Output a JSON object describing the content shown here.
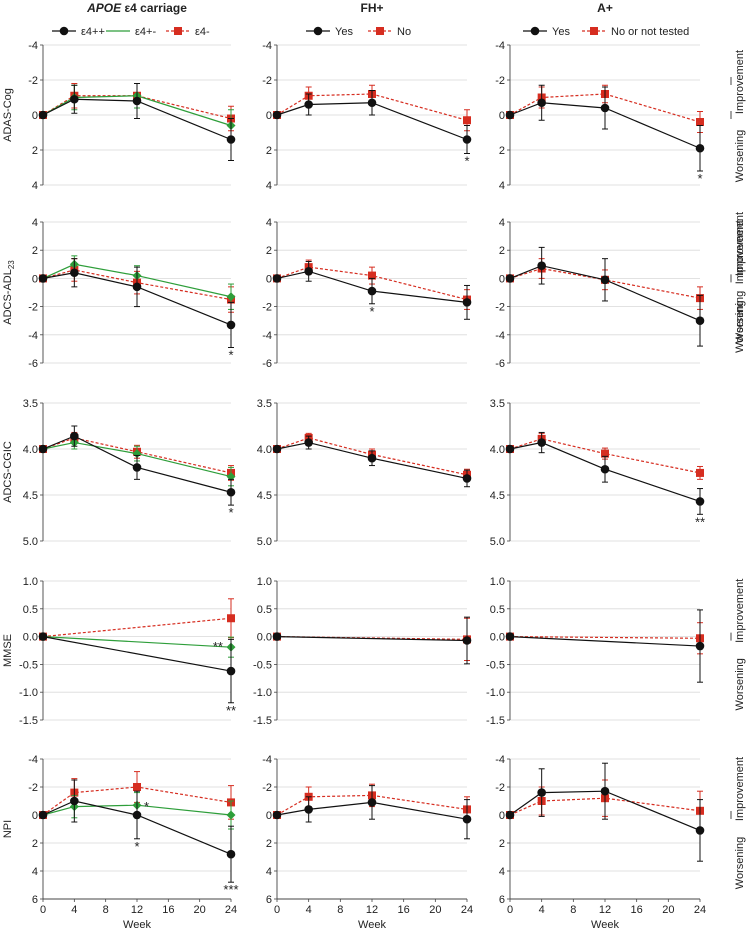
{
  "colors": {
    "black": "#111111",
    "green": "#2e9e3a",
    "red": "#d62d20",
    "grid": "#d9d9d9",
    "axis": "#444444"
  },
  "columns": [
    {
      "title_italic": "APOE",
      "title_rest": " ε4 carriage",
      "legend": [
        "ε4++",
        "ε4+-",
        "ε4-"
      ]
    },
    {
      "title_italic": "",
      "title_rest": "FH+",
      "legend": [
        "Yes",
        "No"
      ]
    },
    {
      "title_italic": "",
      "title_rest": "A+",
      "legend": [
        "Yes",
        "No or not tested"
      ]
    }
  ],
  "side_labels": {
    "improvement": "Improvement",
    "worsening": "Worsening"
  },
  "chart_data": {
    "type": "line",
    "x": [
      0,
      4,
      12,
      24
    ],
    "x_ticks": [
      "0",
      "4",
      "8",
      "12",
      "16",
      "20",
      "24"
    ],
    "xlabel": "Week",
    "rows": [
      {
        "ylabel": "ADAS-Cog",
        "ylabel_sub": "",
        "ylim": [
          -4,
          4
        ],
        "inverted": true,
        "tick_step": 2,
        "tick_decimals": 0,
        "tick_labels": [
          "-4",
          "-2",
          "0",
          "2",
          "4"
        ],
        "panels": [
          {
            "series": [
              {
                "name": "ε4++",
                "color": "black",
                "values": [
                  0,
                  -0.9,
                  -0.8,
                  1.4
                ],
                "err": [
                  0,
                  0.8,
                  1.0,
                  1.2
                ],
                "annotations": []
              },
              {
                "name": "ε4+-",
                "color": "green",
                "values": [
                  0,
                  -1.0,
                  -1.1,
                  0.6
                ],
                "err": [
                  0,
                  0.7,
                  0.7,
                  0.9
                ],
                "annotations": []
              },
              {
                "name": "ε4-",
                "color": "red",
                "values": [
                  0,
                  -1.1,
                  -1.1,
                  0.2
                ],
                "err": [
                  0,
                  0.7,
                  0.7,
                  0.7
                ],
                "annotations": []
              }
            ]
          },
          {
            "series": [
              {
                "name": "Yes",
                "color": "black",
                "values": [
                  0,
                  -0.6,
                  -0.7,
                  1.4
                ],
                "err": [
                  0,
                  0.6,
                  0.7,
                  0.8
                ],
                "annotations": [
                  {
                    "x": 24,
                    "text": "*"
                  }
                ]
              },
              {
                "name": "No",
                "color": "red",
                "values": [
                  0,
                  -1.1,
                  -1.2,
                  0.3
                ],
                "err": [
                  0,
                  0.5,
                  0.5,
                  0.6
                ],
                "annotations": []
              }
            ]
          },
          {
            "series": [
              {
                "name": "Yes",
                "color": "black",
                "values": [
                  0,
                  -0.7,
                  -0.4,
                  1.9
                ],
                "err": [
                  0,
                  1.0,
                  1.2,
                  1.3
                ],
                "annotations": [
                  {
                    "x": 24,
                    "text": "*"
                  }
                ]
              },
              {
                "name": "No or not tested",
                "color": "red",
                "values": [
                  0,
                  -1.0,
                  -1.2,
                  0.4
                ],
                "err": [
                  0,
                  0.6,
                  0.5,
                  0.6
                ],
                "annotations": []
              }
            ]
          }
        ]
      },
      {
        "ylabel": "ADCS-ADL",
        "ylabel_sub": "23",
        "ylim": [
          -6,
          4
        ],
        "inverted": false,
        "tick_step": 2,
        "tick_decimals": 0,
        "tick_labels": [
          "-6",
          "-4",
          "-2",
          "0",
          "2",
          "4"
        ],
        "panels": [
          {
            "series": [
              {
                "name": "ε4++",
                "color": "black",
                "values": [
                  0,
                  0.4,
                  -0.6,
                  -3.3
                ],
                "err": [
                  0,
                  1.0,
                  1.4,
                  1.6
                ],
                "annotations": [
                  {
                    "x": 24,
                    "text": "*"
                  }
                ]
              },
              {
                "name": "ε4+-",
                "color": "green",
                "values": [
                  0,
                  1.0,
                  0.2,
                  -1.3
                ],
                "err": [
                  0,
                  0.6,
                  0.7,
                  0.9
                ],
                "annotations": []
              },
              {
                "name": "ε4-",
                "color": "red",
                "values": [
                  0,
                  0.6,
                  -0.3,
                  -1.5
                ],
                "err": [
                  0,
                  0.8,
                  0.8,
                  0.9
                ],
                "annotations": []
              }
            ]
          },
          {
            "series": [
              {
                "name": "Yes",
                "color": "black",
                "values": [
                  0,
                  0.5,
                  -0.9,
                  -1.7
                ],
                "err": [
                  0,
                  0.7,
                  0.9,
                  1.2
                ],
                "annotations": [
                  {
                    "x": 12,
                    "text": "*"
                  }
                ]
              },
              {
                "name": "No",
                "color": "red",
                "values": [
                  0,
                  0.8,
                  0.2,
                  -1.5
                ],
                "err": [
                  0,
                  0.5,
                  0.6,
                  0.7
                ],
                "annotations": []
              }
            ]
          },
          {
            "series": [
              {
                "name": "Yes",
                "color": "black",
                "values": [
                  0,
                  0.9,
                  -0.1,
                  -3.0
                ],
                "err": [
                  0,
                  1.3,
                  1.5,
                  1.8
                ],
                "annotations": []
              },
              {
                "name": "No or not tested",
                "color": "red",
                "values": [
                  0,
                  0.7,
                  -0.1,
                  -1.4
                ],
                "err": [
                  0,
                  0.7,
                  0.7,
                  0.8
                ],
                "annotations": []
              }
            ]
          }
        ]
      },
      {
        "ylabel": "ADCS-CGIC",
        "ylabel_sub": "",
        "ylim": [
          3.5,
          5.0
        ],
        "inverted": true,
        "tick_step": 0.5,
        "tick_decimals": 1,
        "tick_labels": [
          "3.5",
          "4.0",
          "4.5",
          "5.0"
        ],
        "panels": [
          {
            "series": [
              {
                "name": "ε4++",
                "color": "black",
                "values": [
                  4.0,
                  3.86,
                  4.2,
                  4.47
                ],
                "err": [
                  0,
                  0.11,
                  0.13,
                  0.14
                ],
                "annotations": [
                  {
                    "x": 24,
                    "text": "*"
                  }
                ]
              },
              {
                "name": "ε4+-",
                "color": "green",
                "values": [
                  4.0,
                  3.93,
                  4.05,
                  4.3
                ],
                "err": [
                  0,
                  0.07,
                  0.08,
                  0.1
                ],
                "annotations": []
              },
              {
                "name": "ε4-",
                "color": "red",
                "values": [
                  4.0,
                  3.88,
                  4.03,
                  4.26
                ],
                "err": [
                  0,
                  0.06,
                  0.07,
                  0.08
                ],
                "annotations": []
              }
            ]
          },
          {
            "series": [
              {
                "name": "Yes",
                "color": "black",
                "values": [
                  4.0,
                  3.93,
                  4.1,
                  4.32
                ],
                "err": [
                  0,
                  0.07,
                  0.08,
                  0.09
                ],
                "annotations": []
              },
              {
                "name": "No",
                "color": "red",
                "values": [
                  4.0,
                  3.88,
                  4.06,
                  4.28
                ],
                "err": [
                  0,
                  0.05,
                  0.06,
                  0.06
                ],
                "annotations": []
              }
            ]
          },
          {
            "series": [
              {
                "name": "Yes",
                "color": "black",
                "values": [
                  4.0,
                  3.93,
                  4.22,
                  4.57
                ],
                "err": [
                  0,
                  0.11,
                  0.14,
                  0.14
                ],
                "annotations": [
                  {
                    "x": 24,
                    "text": "**"
                  }
                ]
              },
              {
                "name": "No or not tested",
                "color": "red",
                "values": [
                  4.0,
                  3.89,
                  4.05,
                  4.26
                ],
                "err": [
                  0,
                  0.06,
                  0.06,
                  0.07
                ],
                "annotations": []
              }
            ]
          }
        ]
      },
      {
        "ylabel": "MMSE",
        "ylabel_sub": "",
        "ylim": [
          -1.5,
          1.0
        ],
        "inverted": false,
        "tick_step": 0.5,
        "tick_decimals": 1,
        "tick_labels": [
          "-1.5",
          "-1.0",
          "-0.5",
          "0.0",
          "0.5",
          "1.0"
        ],
        "panels": [
          {
            "series": [
              {
                "name": "ε4++",
                "color": "black",
                "values": [
                  0,
                  null,
                  null,
                  -0.62
                ],
                "err": [
                  0,
                  0,
                  0,
                  0.57
                ],
                "annotations": [
                  {
                    "x": 24,
                    "text": "**"
                  }
                ]
              },
              {
                "name": "ε4+-",
                "color": "green",
                "values": [
                  0,
                  null,
                  null,
                  -0.19
                ],
                "err": [
                  0,
                  0,
                  0,
                  0.18
                ],
                "annotations": [
                  {
                    "x": 24,
                    "text": "**",
                    "left": true
                  }
                ]
              },
              {
                "name": "ε4-",
                "color": "red",
                "values": [
                  0,
                  null,
                  null,
                  0.33
                ],
                "err": [
                  0,
                  0,
                  0,
                  0.35
                ],
                "annotations": []
              }
            ]
          },
          {
            "series": [
              {
                "name": "Yes",
                "color": "black",
                "values": [
                  0,
                  null,
                  null,
                  -0.07
                ],
                "err": [
                  0,
                  0,
                  0,
                  0.42
                ],
                "annotations": []
              },
              {
                "name": "No",
                "color": "red",
                "values": [
                  0,
                  null,
                  null,
                  -0.05
                ],
                "err": [
                  0,
                  0,
                  0,
                  0.38
                ],
                "annotations": []
              }
            ]
          },
          {
            "series": [
              {
                "name": "Yes",
                "color": "black",
                "values": [
                  0,
                  null,
                  null,
                  -0.17
                ],
                "err": [
                  0,
                  0,
                  0,
                  0.65
                ],
                "annotations": []
              },
              {
                "name": "No or not tested",
                "color": "red",
                "values": [
                  0,
                  null,
                  null,
                  -0.03
                ],
                "err": [
                  0,
                  0,
                  0,
                  0.28
                ],
                "annotations": []
              }
            ]
          }
        ]
      },
      {
        "ylabel": "NPI",
        "ylabel_sub": "",
        "ylim": [
          -4,
          6
        ],
        "inverted": true,
        "tick_step": 2,
        "tick_decimals": 0,
        "tick_labels": [
          "-4",
          "-2",
          "0",
          "2",
          "4",
          "6"
        ],
        "panels": [
          {
            "series": [
              {
                "name": "ε4++",
                "color": "black",
                "values": [
                  0,
                  -1.0,
                  0.0,
                  2.8
                ],
                "err": [
                  0,
                  1.5,
                  1.7,
                  2.0
                ],
                "annotations": [
                  {
                    "x": 12,
                    "text": "*"
                  },
                  {
                    "x": 24,
                    "text": "***"
                  }
                ]
              },
              {
                "name": "ε4+-",
                "color": "green",
                "values": [
                  0,
                  -0.6,
                  -0.7,
                  0.0
                ],
                "err": [
                  0,
                  0.8,
                  0.9,
                  1.0
                ],
                "annotations": [
                  {
                    "x": 12,
                    "text": "*",
                    "right": true
                  }
                ]
              },
              {
                "name": "ε4-",
                "color": "red",
                "values": [
                  0,
                  -1.6,
                  -2.0,
                  -0.9
                ],
                "err": [
                  0,
                  1.0,
                  1.1,
                  1.2
                ],
                "annotations": []
              }
            ]
          },
          {
            "series": [
              {
                "name": "Yes",
                "color": "black",
                "values": [
                  0,
                  -0.4,
                  -0.9,
                  0.3
                ],
                "err": [
                  0,
                  0.9,
                  1.2,
                  1.4
                ],
                "annotations": []
              },
              {
                "name": "No",
                "color": "red",
                "values": [
                  0,
                  -1.3,
                  -1.4,
                  -0.4
                ],
                "err": [
                  0,
                  0.7,
                  0.8,
                  0.9
                ],
                "annotations": []
              }
            ]
          },
          {
            "series": [
              {
                "name": "Yes",
                "color": "black",
                "values": [
                  0,
                  -1.6,
                  -1.7,
                  1.1
                ],
                "err": [
                  0,
                  1.7,
                  2.0,
                  2.2
                ],
                "annotations": []
              },
              {
                "name": "No or not tested",
                "color": "red",
                "values": [
                  0,
                  -1.0,
                  -1.2,
                  -0.3
                ],
                "err": [
                  0,
                  1.0,
                  1.3,
                  1.4
                ],
                "annotations": []
              }
            ]
          }
        ]
      }
    ]
  }
}
